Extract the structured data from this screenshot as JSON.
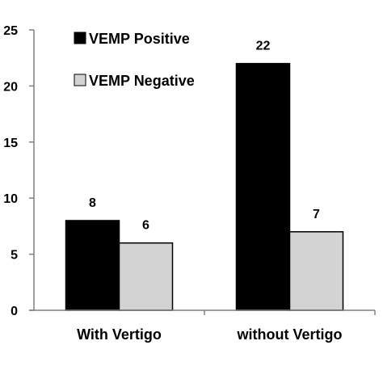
{
  "chart_data": {
    "type": "bar",
    "categories": [
      "With Vertigo",
      "without Vertigo"
    ],
    "series": [
      {
        "name": "VEMP Positive",
        "values": [
          8,
          22
        ],
        "color": "#000000"
      },
      {
        "name": "VEMP Negative",
        "values": [
          6,
          7
        ],
        "color": "#d3d3d3"
      }
    ],
    "ylim": [
      0,
      25
    ],
    "yticks": [
      0,
      5,
      10,
      15,
      20,
      25
    ],
    "data_labels": true,
    "legend_position": "top-left",
    "grid": false
  }
}
